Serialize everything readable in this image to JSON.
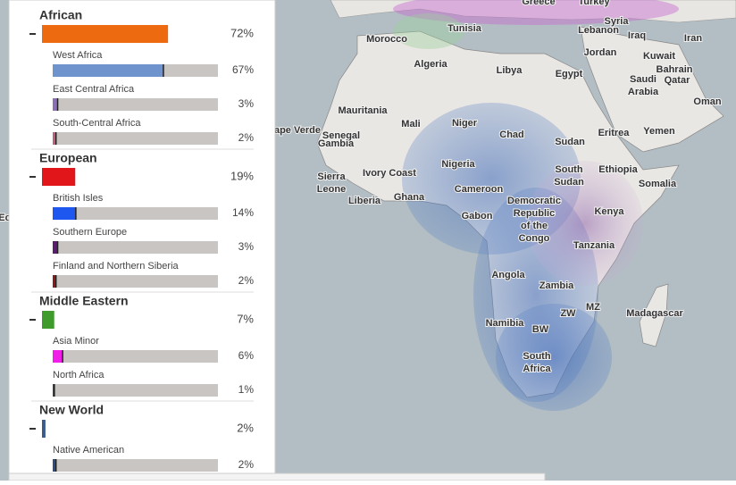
{
  "panel": {
    "groups": [
      {
        "name": "African",
        "value": 72,
        "value_label": "72%",
        "color": "#ee6a10",
        "regions": [
          {
            "name": "West Africa",
            "value": 67,
            "value_label": "67%",
            "color": "#6f93cc"
          },
          {
            "name": "East Central Africa",
            "value": 3,
            "value_label": "3%",
            "color": "#8a6fb5"
          },
          {
            "name": "South-Central Africa",
            "value": 2,
            "value_label": "2%",
            "color": "#c0607a"
          }
        ]
      },
      {
        "name": "European",
        "value": 19,
        "value_label": "19%",
        "color": "#e0161a",
        "regions": [
          {
            "name": "British Isles",
            "value": 14,
            "value_label": "14%",
            "color": "#1e56f0"
          },
          {
            "name": "Southern Europe",
            "value": 3,
            "value_label": "3%",
            "color": "#5a1d6e"
          },
          {
            "name": "Finland and Northern Siberia",
            "value": 2,
            "value_label": "2%",
            "color": "#8b1a1a"
          }
        ]
      },
      {
        "name": "Middle Eastern",
        "value": 7,
        "value_label": "7%",
        "color": "#3f9b2c",
        "regions": [
          {
            "name": "Asia Minor",
            "value": 6,
            "value_label": "6%",
            "color": "#f01ee8"
          },
          {
            "name": "North Africa",
            "value": 1,
            "value_label": "1%",
            "color": "#2d5a3c"
          }
        ]
      },
      {
        "name": "New World",
        "value": 2,
        "value_label": "2%",
        "color": "#3b5b8c",
        "regions": [
          {
            "name": "Native American",
            "value": 2,
            "value_label": "2%",
            "color": "#2c4f80"
          }
        ]
      }
    ]
  },
  "map": {
    "labels": [
      [
        "Greece"
      ],
      [
        "Turkey"
      ],
      [
        "Syria"
      ],
      [
        "Tunisia"
      ],
      [
        "Lebanon"
      ],
      [
        "Iraq"
      ],
      [
        "Iran"
      ],
      [
        "Morocco"
      ],
      [
        "Algeria"
      ],
      [
        "Libya"
      ],
      [
        "Egypt"
      ],
      [
        "Jordan"
      ],
      [
        "Kuwait"
      ],
      [
        "Saudi",
        "Arabia"
      ],
      [
        "Bahrain"
      ],
      [
        "Qatar"
      ],
      [
        "Oman"
      ],
      [
        "Mauritania"
      ],
      [
        "Mali"
      ],
      [
        "Niger"
      ],
      [
        "Chad"
      ],
      [
        "Sudan"
      ],
      [
        "Eritrea"
      ],
      [
        "Yemen"
      ],
      [
        "Cape Verde"
      ],
      [
        "Senegal"
      ],
      [
        "Gambia"
      ],
      [
        "Nigeria"
      ],
      [
        "Ethiopia"
      ],
      [
        "Somalia"
      ],
      [
        "South",
        "Sudan"
      ],
      [
        "Sierra",
        "Leone"
      ],
      [
        "Ivory Coast"
      ],
      [
        "Liberia"
      ],
      [
        "Ghana"
      ],
      [
        "Cameroon"
      ],
      [
        "Gabon"
      ],
      [
        "Democratic",
        "Republic",
        "of the",
        "Congo"
      ],
      [
        "Kenya"
      ],
      [
        "Tanzania"
      ],
      [
        "Angola"
      ],
      [
        "Zambia"
      ],
      [
        "ZW"
      ],
      [
        "MZ"
      ],
      [
        "Madagascar"
      ],
      [
        "Namibia"
      ],
      [
        "BW"
      ],
      [
        "South",
        "Africa"
      ],
      [
        "Ec"
      ]
    ]
  }
}
